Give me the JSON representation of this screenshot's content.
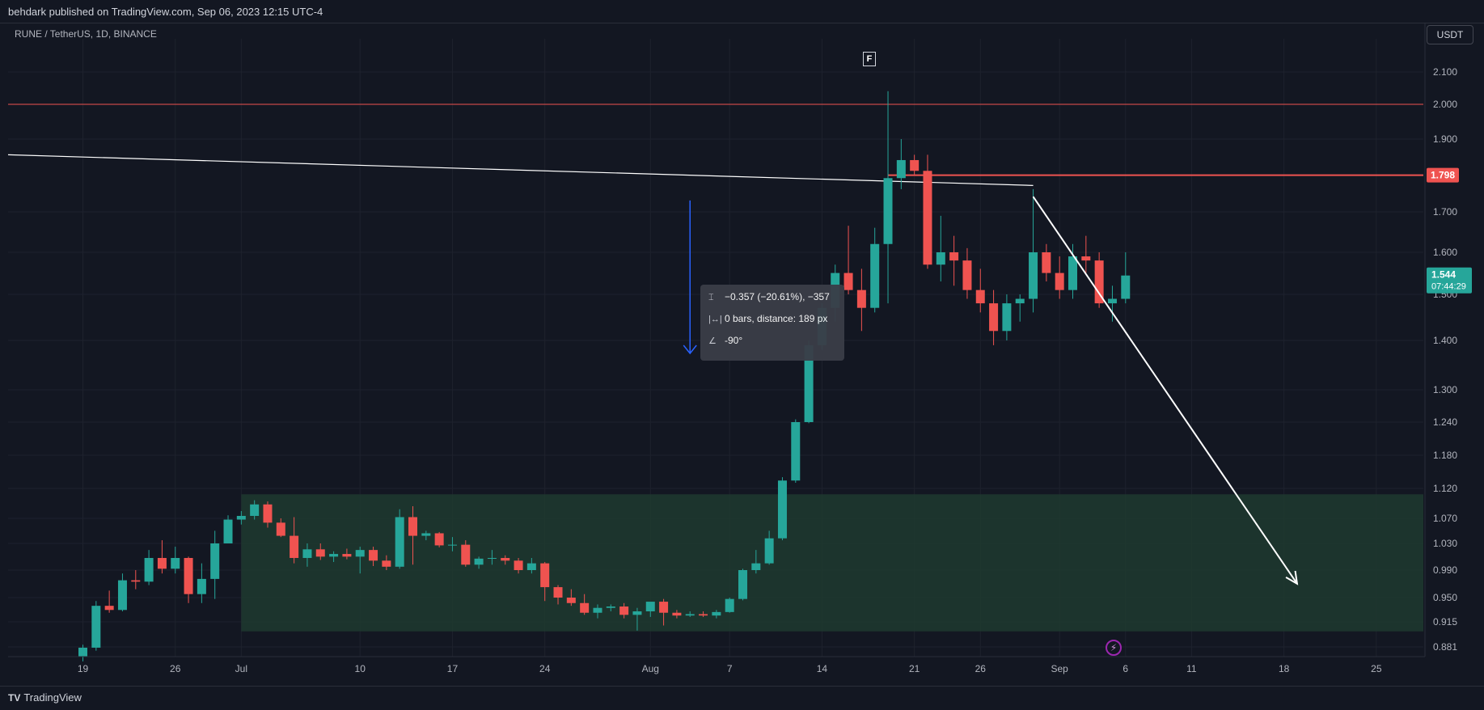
{
  "header": {
    "published": "behdark published on TradingView.com, Sep 06, 2023 12:15 UTC-4"
  },
  "symbol": {
    "label": "RUNE / TetherUS, 1D, BINANCE"
  },
  "currency_button": "USDT",
  "event_badge": "F",
  "measure_tooltip": {
    "price_change": "−0.357 (−20.61%), −357",
    "bars_distance": "0 bars, distance: 189 px",
    "angle": "-90°"
  },
  "footer": {
    "brand": "TradingView",
    "brand_mark": "TV"
  },
  "colors": {
    "background": "#131722",
    "up": "#26a69a",
    "down": "#ef5350",
    "zone": "#1e3a2f",
    "line": "#ffffff",
    "measure_arrow": "#2962ff"
  },
  "chart_data": {
    "type": "candlestick",
    "symbol": "RUNE / TetherUS",
    "interval": "1D",
    "exchange": "BINANCE",
    "ylim": [
      0.86,
      2.18
    ],
    "y_scale": "log",
    "y_ticks": [
      "2.100",
      "2.000",
      "1.900",
      "1.700",
      "1.600",
      "1.500",
      "1.400",
      "1.300",
      "1.240",
      "1.180",
      "1.120",
      "1.070",
      "1.030",
      "0.990",
      "0.950",
      "0.915",
      "0.881"
    ],
    "x_ticks": [
      "19",
      "26",
      "Jul",
      "10",
      "17",
      "24",
      "Aug",
      "7",
      "14",
      "21",
      "26",
      "Sep",
      "6",
      "11",
      "18",
      "25"
    ],
    "candles": [
      {
        "date": "2023-06-19",
        "o": 0.868,
        "h": 0.884,
        "l": 0.862,
        "c": 0.88
      },
      {
        "date": "2023-06-20",
        "o": 0.88,
        "h": 0.945,
        "l": 0.876,
        "c": 0.938
      },
      {
        "date": "2023-06-21",
        "o": 0.938,
        "h": 0.96,
        "l": 0.928,
        "c": 0.932
      },
      {
        "date": "2023-06-22",
        "o": 0.932,
        "h": 0.985,
        "l": 0.93,
        "c": 0.975
      },
      {
        "date": "2023-06-23",
        "o": 0.975,
        "h": 0.99,
        "l": 0.962,
        "c": 0.973
      },
      {
        "date": "2023-06-24",
        "o": 0.973,
        "h": 1.02,
        "l": 0.968,
        "c": 1.008
      },
      {
        "date": "2023-06-25",
        "o": 1.008,
        "h": 1.035,
        "l": 0.985,
        "c": 0.992
      },
      {
        "date": "2023-06-26",
        "o": 0.992,
        "h": 1.025,
        "l": 0.985,
        "c": 1.008
      },
      {
        "date": "2023-06-27",
        "o": 1.008,
        "h": 1.01,
        "l": 0.942,
        "c": 0.955
      },
      {
        "date": "2023-06-28",
        "o": 0.955,
        "h": 1.0,
        "l": 0.942,
        "c": 0.977
      },
      {
        "date": "2023-06-29",
        "o": 0.977,
        "h": 1.05,
        "l": 0.948,
        "c": 1.03
      },
      {
        "date": "2023-06-30",
        "o": 1.03,
        "h": 1.075,
        "l": 1.03,
        "c": 1.068
      },
      {
        "date": "2023-07-01",
        "o": 1.068,
        "h": 1.082,
        "l": 1.06,
        "c": 1.074
      },
      {
        "date": "2023-07-02",
        "o": 1.074,
        "h": 1.1,
        "l": 1.068,
        "c": 1.093
      },
      {
        "date": "2023-07-03",
        "o": 1.093,
        "h": 1.098,
        "l": 1.055,
        "c": 1.063
      },
      {
        "date": "2023-07-04",
        "o": 1.063,
        "h": 1.07,
        "l": 1.04,
        "c": 1.042
      },
      {
        "date": "2023-07-05",
        "o": 1.042,
        "h": 1.072,
        "l": 1.0,
        "c": 1.008
      },
      {
        "date": "2023-07-06",
        "o": 1.008,
        "h": 1.03,
        "l": 0.995,
        "c": 1.021
      },
      {
        "date": "2023-07-07",
        "o": 1.021,
        "h": 1.03,
        "l": 1.005,
        "c": 1.01
      },
      {
        "date": "2023-07-08",
        "o": 1.01,
        "h": 1.018,
        "l": 1.002,
        "c": 1.014
      },
      {
        "date": "2023-07-09",
        "o": 1.014,
        "h": 1.022,
        "l": 1.006,
        "c": 1.01
      },
      {
        "date": "2023-07-10",
        "o": 1.01,
        "h": 1.025,
        "l": 0.985,
        "c": 1.02
      },
      {
        "date": "2023-07-11",
        "o": 1.02,
        "h": 1.025,
        "l": 0.996,
        "c": 1.004
      },
      {
        "date": "2023-07-12",
        "o": 1.004,
        "h": 1.012,
        "l": 0.99,
        "c": 0.995
      },
      {
        "date": "2023-07-13",
        "o": 0.995,
        "h": 1.085,
        "l": 0.992,
        "c": 1.072
      },
      {
        "date": "2023-07-14",
        "o": 1.072,
        "h": 1.09,
        "l": 0.998,
        "c": 1.042
      },
      {
        "date": "2023-07-15",
        "o": 1.042,
        "h": 1.05,
        "l": 1.035,
        "c": 1.046
      },
      {
        "date": "2023-07-16",
        "o": 1.046,
        "h": 1.048,
        "l": 1.024,
        "c": 1.027
      },
      {
        "date": "2023-07-17",
        "o": 1.027,
        "h": 1.04,
        "l": 1.018,
        "c": 1.028
      },
      {
        "date": "2023-07-18",
        "o": 1.028,
        "h": 1.035,
        "l": 0.995,
        "c": 0.998
      },
      {
        "date": "2023-07-19",
        "o": 0.998,
        "h": 1.01,
        "l": 0.992,
        "c": 1.007
      },
      {
        "date": "2023-07-20",
        "o": 1.007,
        "h": 1.02,
        "l": 0.998,
        "c": 1.008
      },
      {
        "date": "2023-07-21",
        "o": 1.008,
        "h": 1.012,
        "l": 0.998,
        "c": 1.004
      },
      {
        "date": "2023-07-22",
        "o": 1.004,
        "h": 1.008,
        "l": 0.985,
        "c": 0.99
      },
      {
        "date": "2023-07-23",
        "o": 0.99,
        "h": 1.008,
        "l": 0.985,
        "c": 1.0
      },
      {
        "date": "2023-07-24",
        "o": 1.0,
        "h": 1.002,
        "l": 0.945,
        "c": 0.965
      },
      {
        "date": "2023-07-25",
        "o": 0.965,
        "h": 0.968,
        "l": 0.94,
        "c": 0.95
      },
      {
        "date": "2023-07-26",
        "o": 0.95,
        "h": 0.962,
        "l": 0.938,
        "c": 0.942
      },
      {
        "date": "2023-07-27",
        "o": 0.942,
        "h": 0.955,
        "l": 0.925,
        "c": 0.928
      },
      {
        "date": "2023-07-28",
        "o": 0.928,
        "h": 0.94,
        "l": 0.92,
        "c": 0.935
      },
      {
        "date": "2023-07-29",
        "o": 0.935,
        "h": 0.94,
        "l": 0.93,
        "c": 0.937
      },
      {
        "date": "2023-07-30",
        "o": 0.937,
        "h": 0.942,
        "l": 0.92,
        "c": 0.925
      },
      {
        "date": "2023-07-31",
        "o": 0.925,
        "h": 0.935,
        "l": 0.903,
        "c": 0.93
      },
      {
        "date": "2023-08-01",
        "o": 0.93,
        "h": 0.942,
        "l": 0.922,
        "c": 0.944
      },
      {
        "date": "2023-08-02",
        "o": 0.944,
        "h": 0.948,
        "l": 0.91,
        "c": 0.928
      },
      {
        "date": "2023-08-03",
        "o": 0.928,
        "h": 0.932,
        "l": 0.92,
        "c": 0.924
      },
      {
        "date": "2023-08-04",
        "o": 0.924,
        "h": 0.93,
        "l": 0.922,
        "c": 0.926
      },
      {
        "date": "2023-08-05",
        "o": 0.926,
        "h": 0.93,
        "l": 0.922,
        "c": 0.924
      },
      {
        "date": "2023-08-06",
        "o": 0.924,
        "h": 0.932,
        "l": 0.92,
        "c": 0.929
      },
      {
        "date": "2023-08-07",
        "o": 0.929,
        "h": 0.95,
        "l": 0.928,
        "c": 0.948
      },
      {
        "date": "2023-08-08",
        "o": 0.948,
        "h": 0.992,
        "l": 0.946,
        "c": 0.99
      },
      {
        "date": "2023-08-09",
        "o": 0.99,
        "h": 1.02,
        "l": 0.985,
        "c": 1.0
      },
      {
        "date": "2023-08-10",
        "o": 1.0,
        "h": 1.05,
        "l": 0.998,
        "c": 1.038
      },
      {
        "date": "2023-08-11",
        "o": 1.038,
        "h": 1.14,
        "l": 1.035,
        "c": 1.134
      },
      {
        "date": "2023-08-12",
        "o": 1.134,
        "h": 1.245,
        "l": 1.13,
        "c": 1.24
      },
      {
        "date": "2023-08-13",
        "o": 1.24,
        "h": 1.4,
        "l": 1.238,
        "c": 1.39
      },
      {
        "date": "2023-08-14",
        "o": 1.39,
        "h": 1.48,
        "l": 1.38,
        "c": 1.47
      },
      {
        "date": "2023-08-15",
        "o": 1.47,
        "h": 1.57,
        "l": 1.44,
        "c": 1.55
      },
      {
        "date": "2023-08-16",
        "o": 1.55,
        "h": 1.665,
        "l": 1.5,
        "c": 1.51
      },
      {
        "date": "2023-08-17",
        "o": 1.51,
        "h": 1.56,
        "l": 1.42,
        "c": 1.47
      },
      {
        "date": "2023-08-18",
        "o": 1.47,
        "h": 1.66,
        "l": 1.46,
        "c": 1.62
      },
      {
        "date": "2023-08-19",
        "o": 1.62,
        "h": 2.04,
        "l": 1.48,
        "c": 1.79
      },
      {
        "date": "2023-08-20",
        "o": 1.79,
        "h": 1.9,
        "l": 1.76,
        "c": 1.84
      },
      {
        "date": "2023-08-21",
        "o": 1.84,
        "h": 1.855,
        "l": 1.8,
        "c": 1.81
      },
      {
        "date": "2023-08-22",
        "o": 1.81,
        "h": 1.855,
        "l": 1.56,
        "c": 1.57
      },
      {
        "date": "2023-08-23",
        "o": 1.57,
        "h": 1.69,
        "l": 1.53,
        "c": 1.6
      },
      {
        "date": "2023-08-24",
        "o": 1.6,
        "h": 1.64,
        "l": 1.52,
        "c": 1.58
      },
      {
        "date": "2023-08-25",
        "o": 1.58,
        "h": 1.61,
        "l": 1.49,
        "c": 1.51
      },
      {
        "date": "2023-08-26",
        "o": 1.51,
        "h": 1.56,
        "l": 1.46,
        "c": 1.48
      },
      {
        "date": "2023-08-27",
        "o": 1.48,
        "h": 1.51,
        "l": 1.39,
        "c": 1.42
      },
      {
        "date": "2023-08-28",
        "o": 1.42,
        "h": 1.5,
        "l": 1.4,
        "c": 1.48
      },
      {
        "date": "2023-08-29",
        "o": 1.48,
        "h": 1.5,
        "l": 1.44,
        "c": 1.49
      },
      {
        "date": "2023-08-30",
        "o": 1.49,
        "h": 1.76,
        "l": 1.46,
        "c": 1.6
      },
      {
        "date": "2023-08-31",
        "o": 1.6,
        "h": 1.62,
        "l": 1.53,
        "c": 1.55
      },
      {
        "date": "2023-09-01",
        "o": 1.55,
        "h": 1.59,
        "l": 1.49,
        "c": 1.51
      },
      {
        "date": "2023-09-02",
        "o": 1.51,
        "h": 1.62,
        "l": 1.49,
        "c": 1.59
      },
      {
        "date": "2023-09-03",
        "o": 1.59,
        "h": 1.64,
        "l": 1.55,
        "c": 1.58
      },
      {
        "date": "2023-09-04",
        "o": 1.58,
        "h": 1.6,
        "l": 1.47,
        "c": 1.48
      },
      {
        "date": "2023-09-05",
        "o": 1.48,
        "h": 1.52,
        "l": 1.44,
        "c": 1.49
      },
      {
        "date": "2023-09-06",
        "o": 1.49,
        "h": 1.6,
        "l": 1.48,
        "c": 1.544
      }
    ],
    "horizontal_lines": [
      2.0,
      1.798
    ],
    "trendline": {
      "from": {
        "date": "2023-05-24",
        "price": 1.855
      },
      "to": {
        "date": "2023-08-30",
        "price": 1.77
      }
    },
    "zone": {
      "from": "2023-07-01",
      "to": "2023-10-01",
      "top": 1.11,
      "bottom": 0.902,
      "color": "#1e3a2f"
    },
    "projection_arrow": {
      "from": {
        "date": "2023-08-30",
        "price": 1.74
      },
      "to": {
        "date": "2023-09-19",
        "price": 0.97
      }
    },
    "measure_arrow": {
      "date": "2023-08-04",
      "from_price": 1.73,
      "to_price": 1.373
    },
    "price_labels": [
      {
        "text": "1.798",
        "color": "#ef5350"
      },
      {
        "text": "1.544",
        "sub": "07:44:29",
        "color": "#26a69a"
      }
    ]
  }
}
